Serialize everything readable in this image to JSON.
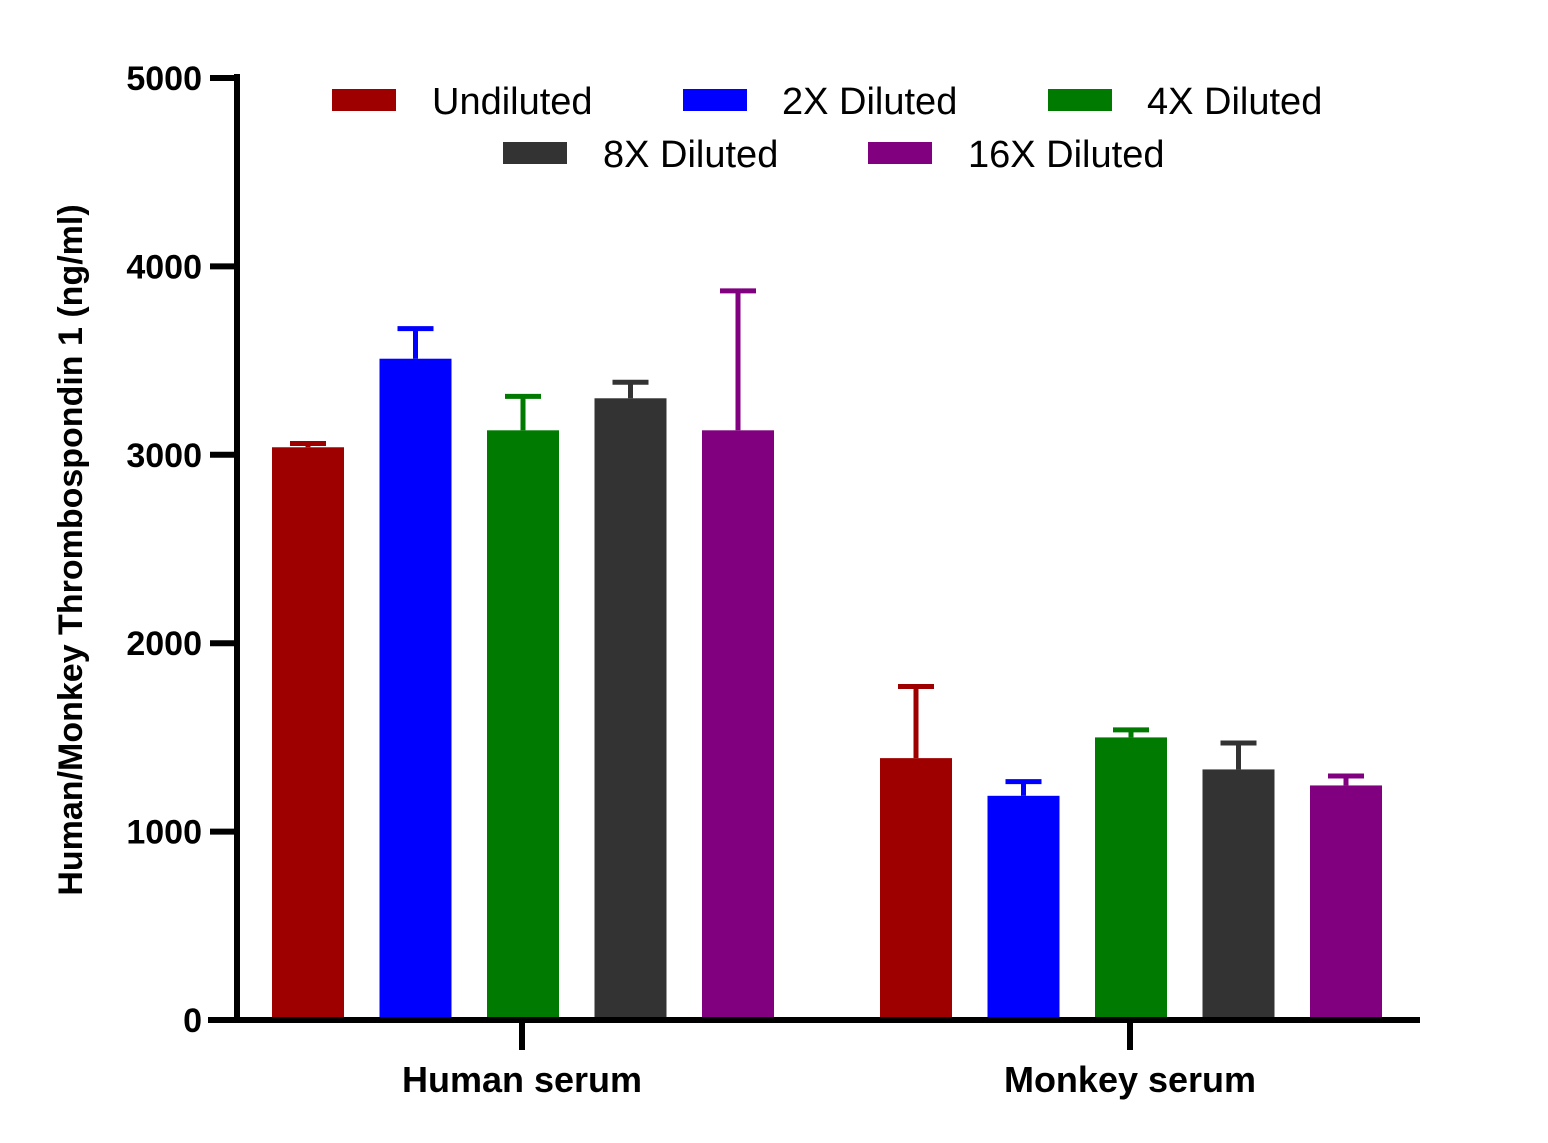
{
  "chart_data": {
    "type": "bar",
    "ylabel": "Human/Monkey Thrombospondin 1 (ng/ml)",
    "xlabel": "",
    "categories": [
      "Human serum",
      "Monkey serum"
    ],
    "ylim": [
      0,
      5000
    ],
    "yticks": [
      0,
      1000,
      2000,
      3000,
      4000,
      5000
    ],
    "error_bars": "upper",
    "legend_position": "top",
    "series": [
      {
        "name": "Undiluted",
        "color": "#9e0000",
        "values": [
          3040,
          1390
        ],
        "errors": [
          20,
          380
        ]
      },
      {
        "name": "2X Diluted",
        "color": "#0000ff",
        "values": [
          3510,
          1190
        ],
        "errors": [
          160,
          75
        ]
      },
      {
        "name": "4X Diluted",
        "color": "#007a00",
        "values": [
          3130,
          1500
        ],
        "errors": [
          180,
          40
        ]
      },
      {
        "name": "8X Diluted",
        "color": "#333333",
        "values": [
          3300,
          1330
        ],
        "errors": [
          85,
          140
        ]
      },
      {
        "name": "16X Diluted",
        "color": "#800080",
        "values": [
          3130,
          1245
        ],
        "errors": [
          740,
          50
        ]
      }
    ]
  }
}
